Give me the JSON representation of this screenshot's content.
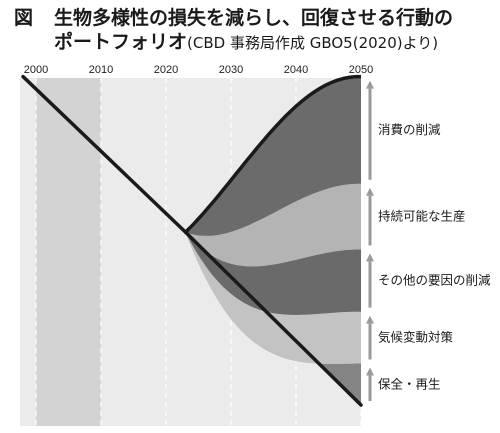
{
  "figure_label": "図",
  "title_line1": "生物多様性の損失を減らし、回復させる行動の",
  "title_line2_main": "ポートフォリオ",
  "title_line2_source": "(CBD 事務局作成 GBO5(2020)より)",
  "chart_data": {
    "type": "area",
    "x_ticks": [
      "2000",
      "2010",
      "2020",
      "2030",
      "2040",
      "2050"
    ],
    "x_values": [
      2000,
      2010,
      2020,
      2030,
      2040,
      2050
    ],
    "xlim": [
      1998,
      2050
    ],
    "shaded_period": [
      2000,
      2010
    ],
    "ylim": [
      0,
      100
    ],
    "historical_line": {
      "x": [
        1998,
        2023
      ],
      "y": [
        90,
        45
      ]
    },
    "baseline_end": {
      "x": 2050,
      "y": -5
    },
    "bands": [
      {
        "label": "保全・再生",
        "top_end": 7,
        "color": "#848484"
      },
      {
        "label": "気候変動対策",
        "top_end": 22,
        "color": "#c3c3c3"
      },
      {
        "label": "その他の要因の削減",
        "top_end": 40,
        "color": "#6a6a6a"
      },
      {
        "label": "持続可能な生産",
        "top_end": 59,
        "color": "#b4b4b4"
      },
      {
        "label": "消費の削減",
        "top_end": 90,
        "color": "#6b6b6b"
      }
    ]
  }
}
